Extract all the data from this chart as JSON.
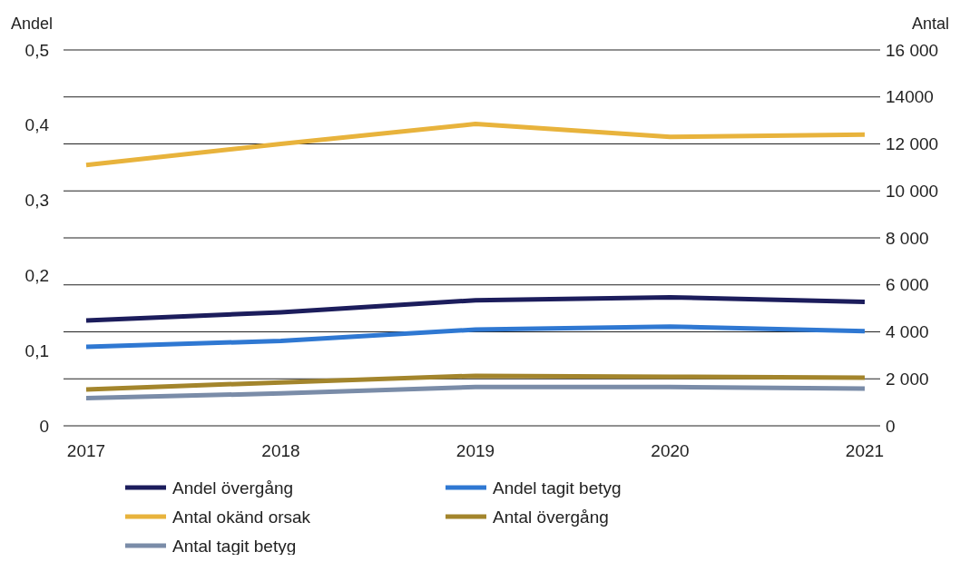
{
  "chart_data": {
    "type": "line",
    "ylabel": "Andel",
    "y2label": "Antal",
    "categories": [
      "2017",
      "2018",
      "2019",
      "2020",
      "2021"
    ],
    "series": [
      {
        "name": "Andel övergång",
        "color": "#1c1d5c",
        "values": [
          0.14,
          0.151,
          0.167,
          0.171,
          0.165
        ]
      },
      {
        "name": "Andel tagit betyg",
        "color": "#2f78d2",
        "values": [
          0.105,
          0.113,
          0.128,
          0.132,
          0.126
        ]
      },
      {
        "name": "Antal okänd orsak",
        "color": "#e8b33c",
        "axis": "y2",
        "values": [
          11100,
          12000,
          12850,
          12300,
          12400
        ]
      },
      {
        "name": "Antal övergång",
        "color": "#a3852c",
        "axis": "y2",
        "values": [
          1550,
          1850,
          2130,
          2090,
          2050
        ]
      },
      {
        "name": "Antal tagit betyg",
        "color": "#7a8ca8",
        "axis": "y2",
        "values": [
          1180,
          1380,
          1650,
          1650,
          1580
        ]
      }
    ],
    "ylim": [
      0,
      0.5
    ],
    "yticks": [
      0,
      {
        "value": 0.1,
        "label": "0,1"
      },
      {
        "value": 0.2,
        "label": "0,2"
      },
      {
        "value": 0.3,
        "label": "0,3"
      },
      {
        "value": 0.4,
        "label": "0,4"
      },
      {
        "value": 0.5,
        "label": "0,5"
      }
    ],
    "y2lim": [
      0,
      16000
    ],
    "y2ticks": [
      0,
      {
        "value": 2000,
        "label": "2 000"
      },
      {
        "value": 4000,
        "label": "4 000"
      },
      {
        "value": 6000,
        "label": "6 000"
      },
      {
        "value": 8000,
        "label": "8 000"
      },
      {
        "value": 10000,
        "label": "10 000"
      },
      {
        "value": 12000,
        "label": "12 000"
      },
      {
        "value": 14000,
        "label": "14000"
      },
      {
        "value": 16000,
        "label": "16 000"
      }
    ],
    "grid": "y2",
    "legend": "bottom",
    "marker": "none",
    "line_style": "solid"
  }
}
